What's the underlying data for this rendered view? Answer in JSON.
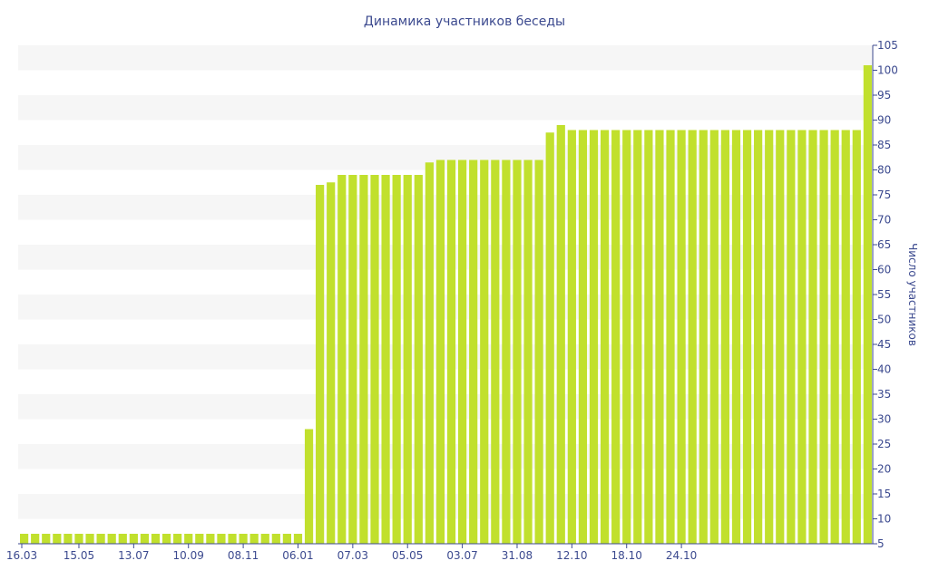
{
  "chart_data": {
    "type": "bar",
    "title": "Динамика участников беседы",
    "xlabel": "",
    "ylabel": "Число участников",
    "ylim": [
      5,
      105
    ],
    "y_ticks": [
      5,
      10,
      15,
      20,
      25,
      30,
      35,
      40,
      45,
      50,
      55,
      60,
      65,
      70,
      75,
      80,
      85,
      90,
      95,
      100,
      105
    ],
    "y_axis_side": "right",
    "grid": "alternating horizontal bands",
    "bar_color": "#c1e02d",
    "band_color": "#f6f6f6",
    "axis_color": "#3c4a8f",
    "x_tick_labels": [
      "16.03",
      "15.05",
      "13.07",
      "10.09",
      "08.11",
      "06.01",
      "07.03",
      "05.05",
      "03.07",
      "31.08",
      "12.10",
      "18.10",
      "24.10"
    ],
    "values": [
      7,
      7,
      7,
      7,
      7,
      7,
      7,
      7,
      7,
      7,
      7,
      7,
      7,
      7,
      7,
      7,
      7,
      7,
      7,
      7,
      7,
      7,
      7,
      7,
      7,
      7,
      28,
      77,
      77.5,
      79,
      79,
      79,
      79,
      79,
      79,
      79,
      79,
      81.5,
      82,
      82,
      82,
      82,
      82,
      82,
      82,
      82,
      82,
      82,
      87.5,
      89,
      88,
      88,
      88,
      88,
      88,
      88,
      88,
      88,
      88,
      88,
      88,
      88,
      88,
      88,
      88,
      88,
      88,
      88,
      88,
      88,
      88,
      88,
      88,
      88,
      88,
      88,
      88,
      101
    ]
  }
}
